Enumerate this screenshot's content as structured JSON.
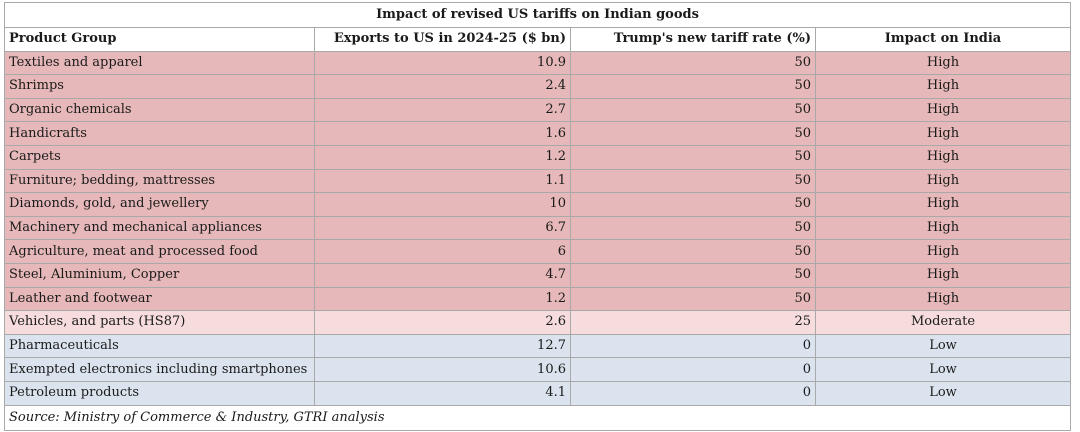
{
  "table": {
    "title": "Impact of revised US tariffs on Indian goods",
    "headers": [
      "Product Group",
      "Exports to US in 2024-25 ($ bn)",
      "Trump's new tariff rate (%)",
      "Impact on India"
    ],
    "rows": [
      {
        "product": "Textiles and apparel",
        "exports": "10.9",
        "tariff": "50",
        "impact": "High",
        "level": "high"
      },
      {
        "product": "Shrimps",
        "exports": "2.4",
        "tariff": "50",
        "impact": "High",
        "level": "high"
      },
      {
        "product": "Organic chemicals",
        "exports": "2.7",
        "tariff": "50",
        "impact": "High",
        "level": "high"
      },
      {
        "product": "Handicrafts",
        "exports": "1.6",
        "tariff": "50",
        "impact": "High",
        "level": "high"
      },
      {
        "product": "Carpets",
        "exports": "1.2",
        "tariff": "50",
        "impact": "High",
        "level": "high"
      },
      {
        "product": "Furniture; bedding, mattresses",
        "exports": "1.1",
        "tariff": "50",
        "impact": "High",
        "level": "high"
      },
      {
        "product": "Diamonds, gold, and jewellery",
        "exports": "10",
        "tariff": "50",
        "impact": "High",
        "level": "high"
      },
      {
        "product": "Machinery and mechanical appliances",
        "exports": "6.7",
        "tariff": "50",
        "impact": "High",
        "level": "high"
      },
      {
        "product": "Agriculture, meat and processed food",
        "exports": "6",
        "tariff": "50",
        "impact": "High",
        "level": "high"
      },
      {
        "product": "Steel, Aluminium, Copper",
        "exports": "4.7",
        "tariff": "50",
        "impact": "High",
        "level": "high"
      },
      {
        "product": "Leather and footwear",
        "exports": "1.2",
        "tariff": "50",
        "impact": "High",
        "level": "high"
      },
      {
        "product": "Vehicles, and parts (HS87)",
        "exports": "2.6",
        "tariff": "25",
        "impact": "Moderate",
        "level": "moderate"
      },
      {
        "product": "Pharmaceuticals",
        "exports": "12.7",
        "tariff": "0",
        "impact": "Low",
        "level": "low"
      },
      {
        "product": "Exempted electronics including smartphones",
        "exports": "10.6",
        "tariff": "0",
        "impact": "Low",
        "level": "low"
      },
      {
        "product": "Petroleum products",
        "exports": "4.1",
        "tariff": "0",
        "impact": "Low",
        "level": "low"
      }
    ],
    "source": "Source:  Ministry of Commerce & Industry, GTRI analysis"
  },
  "colors": {
    "high": "#e6b8b9",
    "moderate": "#f6dcdc",
    "low": "#dbe4ee",
    "border": "#a9a9a9"
  }
}
